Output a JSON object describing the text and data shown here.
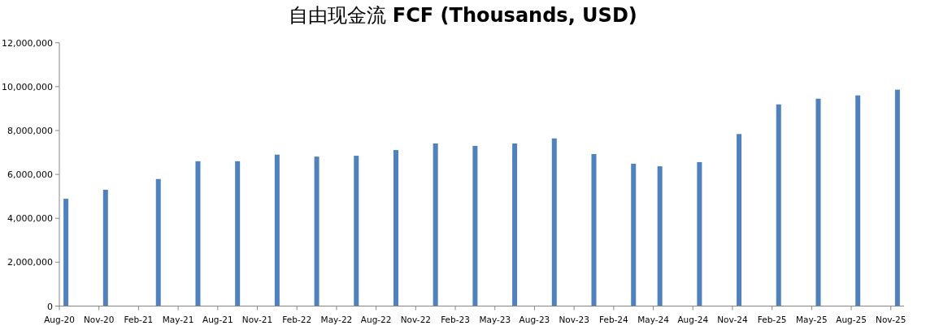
{
  "chart_data": {
    "type": "bar",
    "title": "自由现金流 **FCF (Thousands, USD)**",
    "x": [
      "2020-08-16",
      "2020-11-16",
      "2021-03-16",
      "2021-06-16",
      "2021-09-16",
      "2021-12-16",
      "2022-03-16",
      "2022-06-16",
      "2022-09-16",
      "2022-12-16",
      "2023-03-16",
      "2023-06-16",
      "2023-09-16",
      "2023-12-16",
      "2024-03-16",
      "2024-05-16",
      "2024-08-16",
      "2024-11-16",
      "2025-02-16",
      "2025-05-16",
      "2025-08-16",
      "2025-11-16"
    ],
    "values": [
      4890000,
      5300000,
      5790000,
      6600000,
      6600000,
      6900000,
      6810000,
      6850000,
      7110000,
      7410000,
      7300000,
      7410000,
      7640000,
      6930000,
      6490000,
      6370000,
      6560000,
      7840000,
      9190000,
      9450000,
      9600000,
      9860000
    ],
    "color": "#4f81bd",
    "xlim": [
      "2020-08",
      "2025-12"
    ],
    "xticks": [
      {
        "value": "2020-08",
        "label": "Aug-20"
      },
      {
        "value": "2020-11",
        "label": "Nov-20"
      },
      {
        "value": "2021-02",
        "label": "Feb-21"
      },
      {
        "value": "2021-05",
        "label": "May-21"
      },
      {
        "value": "2021-08",
        "label": "Aug-21"
      },
      {
        "value": "2021-11",
        "label": "Nov-21"
      },
      {
        "value": "2022-02",
        "label": "Feb-22"
      },
      {
        "value": "2022-05",
        "label": "May-22"
      },
      {
        "value": "2022-08",
        "label": "Aug-22"
      },
      {
        "value": "2022-11",
        "label": "Nov-22"
      },
      {
        "value": "2023-02",
        "label": "Feb-23"
      },
      {
        "value": "2023-05",
        "label": "May-23"
      },
      {
        "value": "2023-08",
        "label": "Aug-23"
      },
      {
        "value": "2023-11",
        "label": "Nov-23"
      },
      {
        "value": "2024-02",
        "label": "Feb-24"
      },
      {
        "value": "2024-05",
        "label": "May-24"
      },
      {
        "value": "2024-08",
        "label": "Aug-24"
      },
      {
        "value": "2024-11",
        "label": "Nov-24"
      },
      {
        "value": "2025-02",
        "label": "Feb-25"
      },
      {
        "value": "2025-05",
        "label": "May-25"
      },
      {
        "value": "2025-08",
        "label": "Aug-25"
      },
      {
        "value": "2025-11",
        "label": "Nov-25"
      }
    ],
    "ylim": [
      0,
      12000000
    ],
    "yticks": [
      0,
      {
        "value": 2000000,
        "label": "2,000,000"
      },
      {
        "value": 4000000,
        "label": "4,000,000"
      },
      {
        "value": 6000000,
        "label": "6,000,000"
      },
      {
        "value": 8000000,
        "label": "8,000,000"
      },
      {
        "value": 10000000,
        "label": "10,000,000"
      },
      {
        "value": 12000000,
        "label": "12,000,000"
      }
    ],
    "grid": false
  }
}
